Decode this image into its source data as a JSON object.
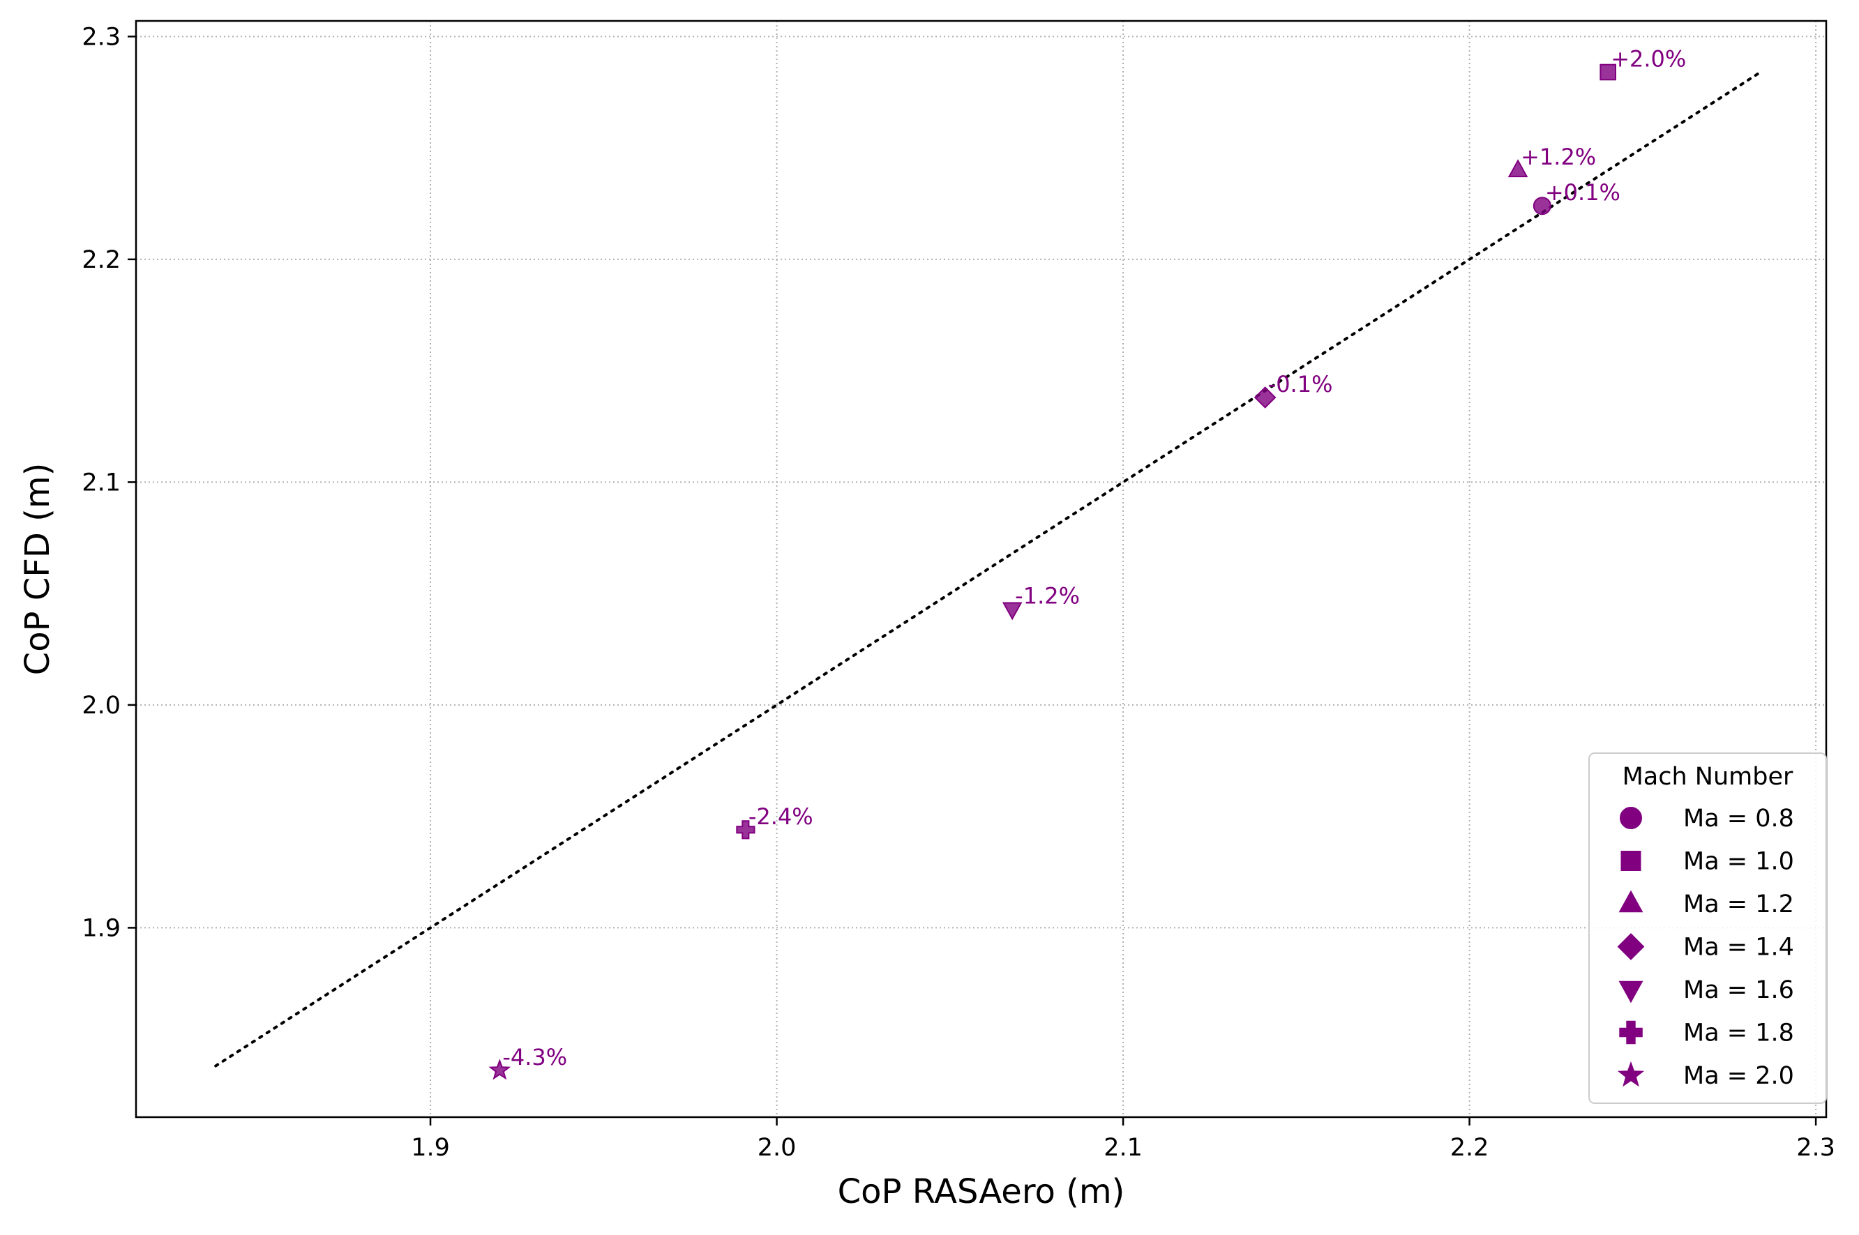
{
  "chart_data": {
    "type": "scatter",
    "title": "",
    "xlabel": "CoP RASAero (m)",
    "ylabel": "CoP CFD (m)",
    "xlim": [
      1.815,
      2.303
    ],
    "ylim": [
      1.815,
      2.307
    ],
    "xticks": [
      1.9,
      2.0,
      2.1,
      2.2,
      2.3
    ],
    "yticks": [
      1.9,
      2.0,
      2.1,
      2.2,
      2.3
    ],
    "xtick_labels": [
      "1.9",
      "2.0",
      "2.1",
      "2.2",
      "2.3"
    ],
    "ytick_labels": [
      "1.9",
      "2.0",
      "2.1",
      "2.2",
      "2.3"
    ],
    "grid": true,
    "marker_color": "#800080",
    "reference_line": {
      "style": "dotted",
      "color": "#000000",
      "from": [
        1.838,
        1.838
      ],
      "to": [
        2.284,
        2.284
      ]
    },
    "legend": {
      "title": "Mach Number",
      "position": "lower-right"
    },
    "series": [
      {
        "name": "Ma = 0.8",
        "marker": "circle",
        "x": 2.221,
        "y": 2.224,
        "annotation": "+0.1%"
      },
      {
        "name": "Ma = 1.0",
        "marker": "square",
        "x": 2.24,
        "y": 2.284,
        "annotation": "+2.0%"
      },
      {
        "name": "Ma = 1.2",
        "marker": "triangle-up",
        "x": 2.214,
        "y": 2.24,
        "annotation": "+1.2%"
      },
      {
        "name": "Ma = 1.4",
        "marker": "diamond",
        "x": 2.141,
        "y": 2.138,
        "annotation": "-0.1%"
      },
      {
        "name": "Ma = 1.6",
        "marker": "triangle-down",
        "x": 2.068,
        "y": 2.043,
        "annotation": "-1.2%"
      },
      {
        "name": "Ma = 1.8",
        "marker": "plus",
        "x": 1.991,
        "y": 1.944,
        "annotation": "-2.4%"
      },
      {
        "name": "Ma = 2.0",
        "marker": "star",
        "x": 1.92,
        "y": 1.836,
        "annotation": "-4.3%"
      }
    ]
  }
}
